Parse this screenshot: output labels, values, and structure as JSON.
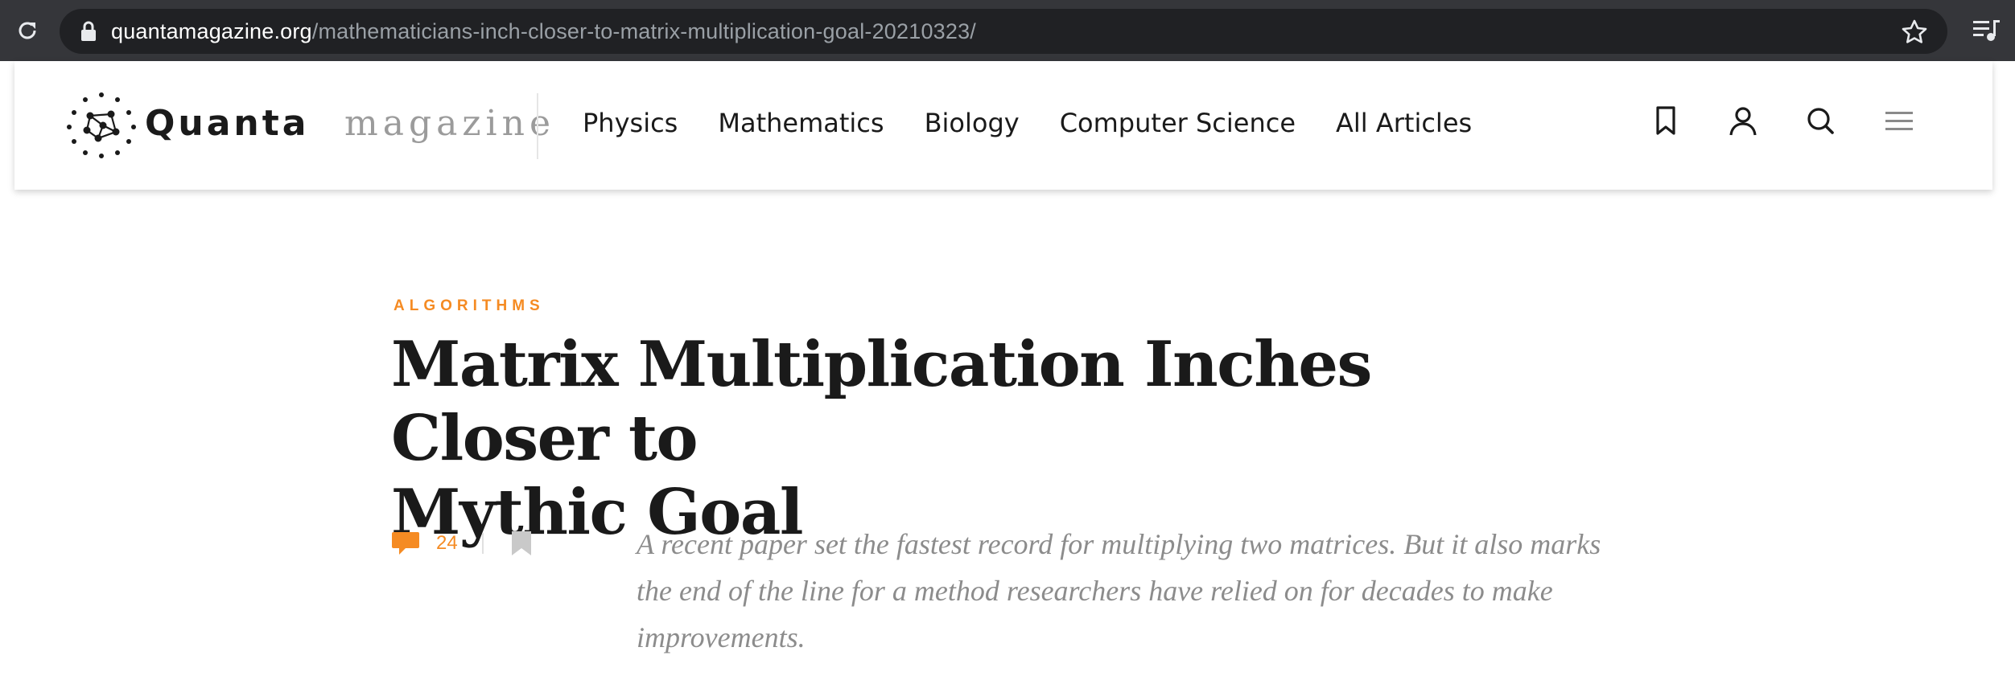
{
  "browser": {
    "url_domain": "quantamagazine.org",
    "url_path": "/mathematicians-inch-closer-to-matrix-multiplication-goal-20210323/"
  },
  "site": {
    "logo_primary": "Quanta",
    "logo_secondary": "magazine",
    "nav": [
      "Physics",
      "Mathematics",
      "Biology",
      "Computer Science",
      "All Articles"
    ],
    "icons": [
      "bookmark-icon",
      "user-icon",
      "search-icon",
      "menu-icon"
    ]
  },
  "article": {
    "kicker": "ALGORITHMS",
    "title_line1": "Matrix Multiplication Inches Closer to",
    "title_line2": "Mythic Goal",
    "comment_count": "24",
    "deck": "A recent paper set the fastest record for multiplying two matrices. But it also marks the end of the line for a method researchers have relied on for decades to make improvements."
  },
  "colors": {
    "accent": "#f58b23",
    "chrome": "#35363a",
    "omnibox": "#202124",
    "deck_text": "#8c8c8c"
  }
}
